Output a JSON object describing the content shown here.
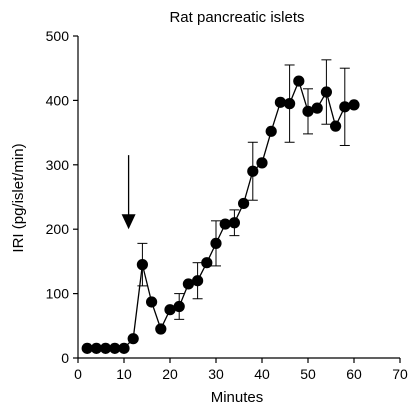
{
  "chart_data": {
    "type": "scatter",
    "title": "Rat pancreatic islets",
    "xlabel": "Minutes",
    "ylabel": "IRI (pg/islet/min)",
    "xlim": [
      0,
      70
    ],
    "ylim": [
      0,
      500
    ],
    "xticks": [
      0,
      10,
      20,
      30,
      40,
      50,
      60,
      70
    ],
    "yticks": [
      0,
      100,
      200,
      300,
      400,
      500
    ],
    "grid": false,
    "legend": "none",
    "marker_color": "#000000",
    "line_color": "#000000",
    "series": [
      {
        "x": [
          2,
          4,
          6,
          8,
          10,
          12,
          14,
          16,
          18,
          20,
          22,
          24,
          26,
          28,
          30,
          32,
          34,
          36,
          38,
          40,
          42,
          44,
          46,
          48,
          50,
          52,
          54,
          56,
          58,
          60
        ],
        "y": [
          15,
          15,
          15,
          15,
          15,
          30,
          145,
          87,
          45,
          75,
          80,
          115,
          120,
          148,
          178,
          208,
          210,
          240,
          290,
          303,
          352,
          397,
          395,
          430,
          383,
          388,
          413,
          360,
          390,
          393
        ],
        "err": [
          0,
          0,
          0,
          0,
          0,
          0,
          33,
          0,
          0,
          0,
          20,
          0,
          28,
          0,
          35,
          0,
          20,
          0,
          45,
          0,
          0,
          0,
          60,
          0,
          35,
          0,
          50,
          0,
          60,
          0
        ]
      }
    ],
    "annotations": [
      {
        "type": "arrow",
        "direction": "down",
        "x": 11,
        "y_from": 315,
        "y_to": 200
      }
    ]
  }
}
